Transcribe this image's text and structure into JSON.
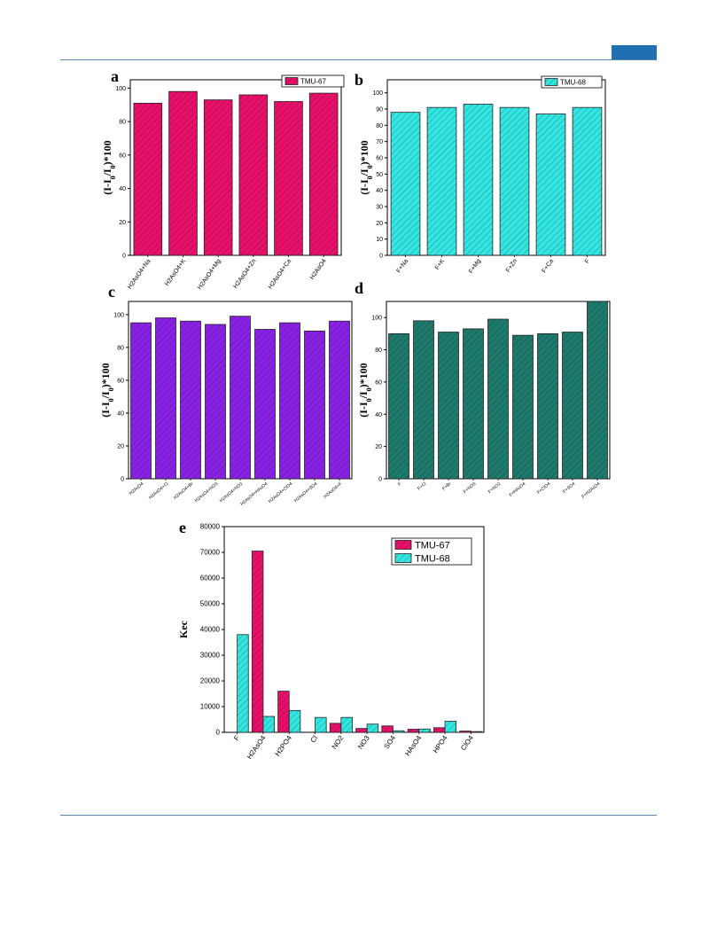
{
  "colors": {
    "tmu67": "#e8106a",
    "tmu68": "#33e6e2",
    "purple": "#8a22e6",
    "teal": "#1d7a6c",
    "rule": "#5a87b4",
    "header_tab": "#1f6fb2"
  },
  "chart_data": [
    {
      "panel": "a",
      "type": "bar",
      "ylabel": "(I-I0/I0)*100",
      "ylim": [
        0,
        105
      ],
      "yticks": [
        0,
        20,
        40,
        60,
        80,
        100
      ],
      "categories": [
        "H2AsO4+Na",
        "H2AsO4+K",
        "H2AsO4+Mg",
        "H2AsO4+Zn",
        "H2AsO4+Ca",
        "H2AsO4"
      ],
      "series": [
        {
          "name": "TMU-67",
          "color": "#e8106a",
          "values": [
            91,
            98,
            93,
            96,
            92,
            97
          ]
        }
      ],
      "legend": "top-right"
    },
    {
      "panel": "b",
      "type": "bar",
      "ylabel": "(I-I0/I0)*100",
      "ylim": [
        0,
        108
      ],
      "yticks": [
        0,
        10,
        20,
        30,
        40,
        50,
        60,
        70,
        80,
        90,
        100
      ],
      "categories": [
        "F+Na",
        "F+K",
        "F+Mg",
        "F+Zn",
        "F+Ca",
        "F"
      ],
      "series": [
        {
          "name": "TMU-68",
          "color": "#33e6e2",
          "values": [
            88,
            91,
            93,
            91,
            87,
            91
          ]
        }
      ],
      "legend": "top-right"
    },
    {
      "panel": "c",
      "type": "bar",
      "ylabel": "(I-I0/I0)*100",
      "ylim": [
        0,
        108
      ],
      "yticks": [
        0,
        20,
        40,
        60,
        80,
        100
      ],
      "categories": [
        "H2AsO4",
        "H2AsO4+Cl",
        "H2AsO4+Br",
        "H2AsO4+NO3",
        "H2AsO4+NO2",
        "H2AsO4+HAsO4",
        "H2AsO4+ClO4",
        "H2AsO4+SO4",
        "H2AsO4+F"
      ],
      "series": [
        {
          "name": "",
          "color": "#8a22e6",
          "values": [
            95,
            98,
            96,
            94,
            99,
            91,
            95,
            90,
            96
          ]
        }
      ]
    },
    {
      "panel": "d",
      "type": "bar",
      "ylabel": "(I-I0/I0)*100",
      "ylim": [
        0,
        110
      ],
      "yticks": [
        0,
        20,
        40,
        60,
        80,
        100
      ],
      "categories": [
        "F",
        "F+Cl",
        "F+Br",
        "F+NO3",
        "F+NO2",
        "F+HAsO4",
        "F+ClO4",
        "F+SO4",
        "F+H2AsO4"
      ],
      "series": [
        {
          "name": "",
          "color": "#1d7a6c",
          "values": [
            90,
            98,
            91,
            93,
            99,
            89,
            90,
            91,
            110
          ]
        }
      ]
    },
    {
      "panel": "e",
      "type": "bar",
      "ylabel": "Kec",
      "ylim": [
        0,
        80000
      ],
      "yticks": [
        0,
        10000,
        20000,
        30000,
        40000,
        50000,
        60000,
        70000,
        80000
      ],
      "categories": [
        "F",
        "H2AsO4",
        "H2PO4",
        "Cl",
        "NO2",
        "NO3",
        "SO4",
        "HAsO4",
        "HPO4",
        "ClO4"
      ],
      "series": [
        {
          "name": "TMU-67",
          "color": "#e8106a",
          "values": [
            0,
            70500,
            16000,
            0,
            3500,
            1500,
            2500,
            1200,
            1800,
            500
          ]
        },
        {
          "name": "TMU-68",
          "color": "#33e6e2",
          "values": [
            38000,
            6200,
            8500,
            5800,
            5800,
            3200,
            600,
            1300,
            4300,
            300
          ]
        }
      ],
      "legend": "top-right"
    }
  ]
}
